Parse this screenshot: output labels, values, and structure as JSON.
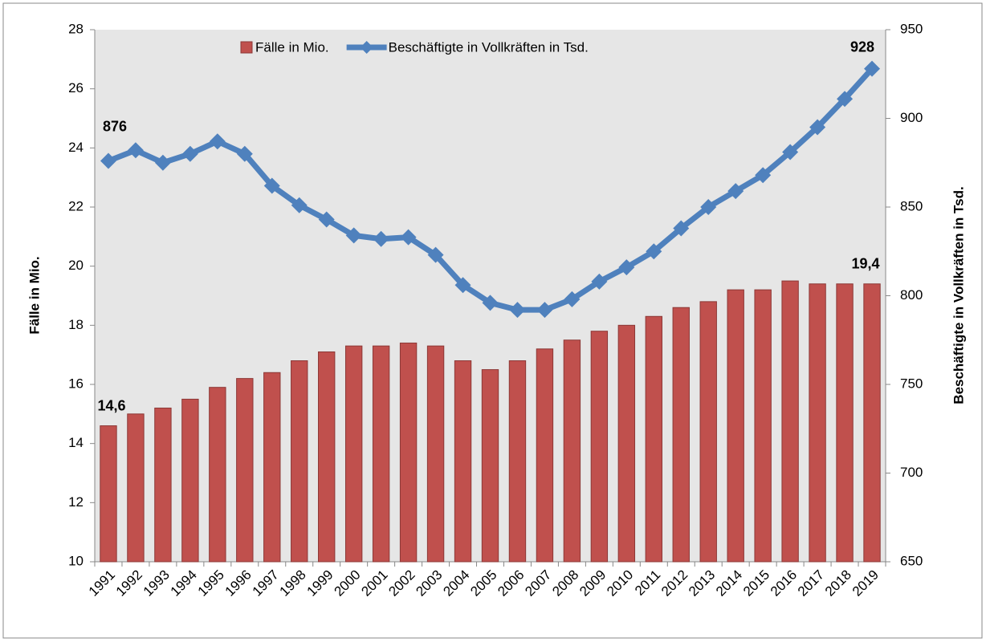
{
  "chart_data": {
    "type": "bar-line",
    "categories": [
      "1991",
      "1992",
      "1993",
      "1994",
      "1995",
      "1996",
      "1997",
      "1998",
      "1999",
      "2000",
      "2001",
      "2002",
      "2003",
      "2004",
      "2005",
      "2006",
      "2007",
      "2008",
      "2009",
      "2010",
      "2011",
      "2012",
      "2013",
      "2014",
      "2015",
      "2016",
      "2017",
      "2018",
      "2019"
    ],
    "y_label": "Fälle in Mio.",
    "y2_label": "Beschäftigte in Vollkräften in Tsd.",
    "series": [
      {
        "name": "Fälle in Mio.",
        "type": "bar",
        "axis": "y",
        "color": "#c0504d",
        "values": [
          14.6,
          15.0,
          15.2,
          15.5,
          15.9,
          16.2,
          16.4,
          16.8,
          17.1,
          17.3,
          17.3,
          17.4,
          17.3,
          16.8,
          16.5,
          16.8,
          17.2,
          17.5,
          17.8,
          18.0,
          18.3,
          18.6,
          18.8,
          19.2,
          19.2,
          19.5,
          19.4,
          19.4,
          19.4
        ],
        "value_labels": [
          "14,6",
          null,
          null,
          null,
          null,
          null,
          null,
          null,
          null,
          null,
          null,
          null,
          null,
          null,
          null,
          null,
          null,
          null,
          null,
          null,
          null,
          null,
          null,
          null,
          null,
          null,
          null,
          null,
          "19,4"
        ]
      },
      {
        "name": "Beschäftigte in Vollkräften in Tsd.",
        "type": "line",
        "axis": "y2",
        "color": "#4f81bd",
        "values": [
          876,
          882,
          875,
          880,
          887,
          880,
          862,
          851,
          843,
          834,
          832,
          833,
          823,
          806,
          796,
          792,
          792,
          798,
          808,
          816,
          825,
          838,
          850,
          859,
          868,
          881,
          895,
          911,
          928
        ],
        "value_labels": [
          "876",
          null,
          null,
          null,
          null,
          null,
          null,
          null,
          null,
          null,
          null,
          null,
          null,
          null,
          null,
          null,
          null,
          null,
          null,
          null,
          null,
          null,
          null,
          null,
          null,
          null,
          null,
          null,
          "928"
        ]
      }
    ],
    "ylim": [
      10,
      28
    ],
    "yticks": [
      10,
      12,
      14,
      16,
      18,
      20,
      22,
      24,
      26,
      28
    ],
    "y2lim": [
      650,
      950
    ],
    "y2ticks": [
      650,
      700,
      750,
      800,
      850,
      900,
      950
    ],
    "legend": "top"
  }
}
